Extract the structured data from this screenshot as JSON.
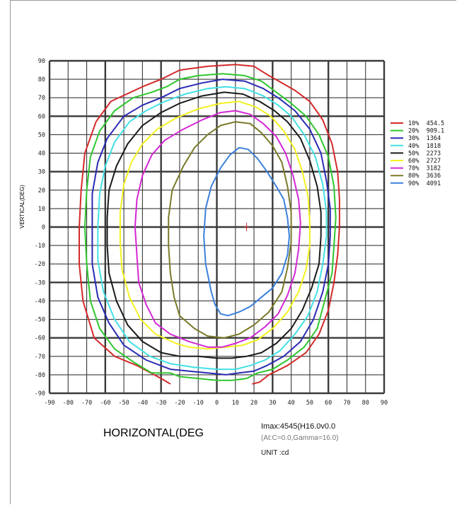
{
  "chart_data": {
    "type": "line",
    "chart_kind": "isocandela contour plot",
    "xlabel": "HORIZONTAL(DEG",
    "ylabel": "VERTICAL(DEG)",
    "xlim": [
      -90,
      90
    ],
    "ylim": [
      -90,
      90
    ],
    "x_ticks": [
      "-90",
      "-80",
      "-70",
      "-60",
      "-50",
      "-40",
      "-30",
      "-20",
      "-10",
      "0",
      "10",
      "20",
      "30",
      "40",
      "50",
      "60",
      "70",
      "80",
      "90"
    ],
    "y_ticks": [
      "90",
      "80",
      "70",
      "60",
      "50",
      "40",
      "30",
      "20",
      "10",
      "0",
      "-10",
      "-20",
      "-30",
      "-40",
      "-50",
      "-60",
      "-70",
      "-80",
      "-90"
    ],
    "grid": true,
    "legend_position": "right",
    "center_mark": [
      16,
      0
    ],
    "series": [
      {
        "name": "10%  454.5",
        "color": "#d42a2a",
        "points": [
          [
            -25,
            -85
          ],
          [
            -30,
            -82
          ],
          [
            -43,
            -75
          ],
          [
            -55,
            -70
          ],
          [
            -66,
            -60
          ],
          [
            -72,
            -40
          ],
          [
            -74,
            -20
          ],
          [
            -74,
            0
          ],
          [
            -73,
            20
          ],
          [
            -71,
            40
          ],
          [
            -65,
            57
          ],
          [
            -57,
            68
          ],
          [
            -40,
            76
          ],
          [
            -30,
            80
          ],
          [
            -20,
            85
          ],
          [
            -5,
            87
          ],
          [
            10,
            88
          ],
          [
            20,
            87
          ],
          [
            28,
            82
          ],
          [
            35,
            78
          ],
          [
            42,
            74
          ],
          [
            50,
            68
          ],
          [
            57,
            58
          ],
          [
            62,
            45
          ],
          [
            65,
            30
          ],
          [
            66,
            15
          ],
          [
            66,
            0
          ],
          [
            65,
            -15
          ],
          [
            63,
            -30
          ],
          [
            60,
            -45
          ],
          [
            55,
            -58
          ],
          [
            48,
            -68
          ],
          [
            38,
            -75
          ],
          [
            28,
            -80
          ],
          [
            23,
            -84
          ],
          [
            19,
            -85
          ]
        ]
      },
      {
        "name": "20%  909.1",
        "color": "#2ec72e",
        "points": [
          [
            -35,
            -79
          ],
          [
            -45,
            -73
          ],
          [
            -55,
            -66
          ],
          [
            -63,
            -55
          ],
          [
            -68,
            -40
          ],
          [
            -70,
            -20
          ],
          [
            -71,
            0
          ],
          [
            -70,
            20
          ],
          [
            -68,
            38
          ],
          [
            -63,
            52
          ],
          [
            -55,
            63
          ],
          [
            -45,
            70
          ],
          [
            -35,
            73
          ],
          [
            -27,
            76
          ],
          [
            -20,
            80
          ],
          [
            -10,
            82
          ],
          [
            3,
            83
          ],
          [
            15,
            82
          ],
          [
            24,
            79
          ],
          [
            32,
            73
          ],
          [
            40,
            67
          ],
          [
            48,
            60
          ],
          [
            55,
            50
          ],
          [
            60,
            38
          ],
          [
            63,
            22
          ],
          [
            64,
            5
          ],
          [
            63,
            -10
          ],
          [
            62,
            -25
          ],
          [
            58,
            -40
          ],
          [
            54,
            -55
          ],
          [
            47,
            -65
          ],
          [
            38,
            -72
          ],
          [
            30,
            -77
          ],
          [
            22,
            -79
          ],
          [
            16,
            -82
          ],
          [
            8,
            -83
          ],
          [
            0,
            -83
          ],
          [
            -10,
            -82
          ],
          [
            -20,
            -81
          ],
          [
            -25,
            -79
          ],
          [
            -35,
            -79
          ]
        ]
      },
      {
        "name": "30%  1364",
        "color": "#2a2ab4",
        "points": [
          [
            -25,
            -77
          ],
          [
            -38,
            -72
          ],
          [
            -50,
            -64
          ],
          [
            -58,
            -52
          ],
          [
            -64,
            -38
          ],
          [
            -67,
            -20
          ],
          [
            -67,
            0
          ],
          [
            -67,
            18
          ],
          [
            -64,
            35
          ],
          [
            -59,
            48
          ],
          [
            -50,
            60
          ],
          [
            -40,
            66
          ],
          [
            -30,
            70
          ],
          [
            -20,
            75
          ],
          [
            -8,
            78
          ],
          [
            3,
            80
          ],
          [
            15,
            79
          ],
          [
            25,
            75
          ],
          [
            33,
            70
          ],
          [
            42,
            63
          ],
          [
            50,
            53
          ],
          [
            56,
            40
          ],
          [
            59,
            25
          ],
          [
            61,
            10
          ],
          [
            61,
            -5
          ],
          [
            60,
            -20
          ],
          [
            57,
            -35
          ],
          [
            52,
            -50
          ],
          [
            45,
            -62
          ],
          [
            36,
            -70
          ],
          [
            27,
            -75
          ],
          [
            20,
            -78
          ],
          [
            12,
            -79
          ],
          [
            5,
            -80
          ],
          [
            -5,
            -79
          ],
          [
            -15,
            -78
          ],
          [
            -25,
            -77
          ]
        ]
      },
      {
        "name": "40%  1818",
        "color": "#42e0e6",
        "points": [
          [
            -25,
            -74
          ],
          [
            -36,
            -70
          ],
          [
            -47,
            -62
          ],
          [
            -55,
            -50
          ],
          [
            -61,
            -35
          ],
          [
            -64,
            -18
          ],
          [
            -64,
            0
          ],
          [
            -63,
            18
          ],
          [
            -60,
            33
          ],
          [
            -55,
            46
          ],
          [
            -47,
            57
          ],
          [
            -38,
            63
          ],
          [
            -28,
            68
          ],
          [
            -17,
            72
          ],
          [
            -5,
            75
          ],
          [
            5,
            76
          ],
          [
            15,
            75
          ],
          [
            25,
            71
          ],
          [
            33,
            66
          ],
          [
            40,
            60
          ],
          [
            47,
            50
          ],
          [
            53,
            38
          ],
          [
            57,
            23
          ],
          [
            59,
            8
          ],
          [
            59,
            -5
          ],
          [
            57,
            -20
          ],
          [
            54,
            -35
          ],
          [
            49,
            -48
          ],
          [
            42,
            -58
          ],
          [
            34,
            -67
          ],
          [
            26,
            -72
          ],
          [
            18,
            -75
          ],
          [
            10,
            -77
          ],
          [
            0,
            -77
          ],
          [
            -12,
            -76
          ],
          [
            -25,
            -74
          ]
        ]
      },
      {
        "name": "50%  2273",
        "color": "#1a1a1a",
        "points": [
          [
            -30,
            -68
          ],
          [
            -40,
            -62
          ],
          [
            -48,
            -53
          ],
          [
            -54,
            -40
          ],
          [
            -58,
            -25
          ],
          [
            -59,
            -10
          ],
          [
            -59,
            5
          ],
          [
            -58,
            20
          ],
          [
            -54,
            33
          ],
          [
            -48,
            45
          ],
          [
            -40,
            55
          ],
          [
            -30,
            62
          ],
          [
            -20,
            67
          ],
          [
            -8,
            71
          ],
          [
            4,
            73
          ],
          [
            14,
            72
          ],
          [
            23,
            68
          ],
          [
            31,
            63
          ],
          [
            38,
            57
          ],
          [
            45,
            48
          ],
          [
            50,
            36
          ],
          [
            54,
            22
          ],
          [
            56,
            8
          ],
          [
            56,
            -5
          ],
          [
            55,
            -20
          ],
          [
            51,
            -33
          ],
          [
            46,
            -45
          ],
          [
            40,
            -55
          ],
          [
            32,
            -63
          ],
          [
            24,
            -68
          ],
          [
            16,
            -70
          ],
          [
            8,
            -71
          ],
          [
            0,
            -71
          ],
          [
            -10,
            -70
          ],
          [
            -20,
            -70
          ],
          [
            -30,
            -68
          ]
        ]
      },
      {
        "name": "60%  2727",
        "color": "#f2f21e",
        "points": [
          [
            -22,
            -63
          ],
          [
            -33,
            -58
          ],
          [
            -41,
            -50
          ],
          [
            -47,
            -38
          ],
          [
            -51,
            -23
          ],
          [
            -52,
            -8
          ],
          [
            -52,
            8
          ],
          [
            -50,
            23
          ],
          [
            -46,
            35
          ],
          [
            -40,
            45
          ],
          [
            -32,
            53
          ],
          [
            -22,
            59
          ],
          [
            -10,
            64
          ],
          [
            2,
            67
          ],
          [
            12,
            68
          ],
          [
            21,
            65
          ],
          [
            29,
            60
          ],
          [
            36,
            52
          ],
          [
            42,
            42
          ],
          [
            46,
            30
          ],
          [
            49,
            17
          ],
          [
            50,
            3
          ],
          [
            50,
            -10
          ],
          [
            48,
            -23
          ],
          [
            44,
            -35
          ],
          [
            38,
            -46
          ],
          [
            30,
            -55
          ],
          [
            22,
            -61
          ],
          [
            14,
            -64
          ],
          [
            5,
            -65
          ],
          [
            -5,
            -66
          ],
          [
            -15,
            -65
          ],
          [
            -22,
            -63
          ]
        ]
      },
      {
        "name": "70%  3182",
        "color": "#d427d4",
        "points": [
          [
            -25,
            -58
          ],
          [
            -33,
            -52
          ],
          [
            -38,
            -42
          ],
          [
            -42,
            -30
          ],
          [
            -43,
            -15
          ],
          [
            -44,
            0
          ],
          [
            -43,
            15
          ],
          [
            -40,
            28
          ],
          [
            -35,
            39
          ],
          [
            -28,
            47
          ],
          [
            -18,
            53
          ],
          [
            -8,
            58
          ],
          [
            2,
            62
          ],
          [
            10,
            63
          ],
          [
            18,
            61
          ],
          [
            25,
            56
          ],
          [
            32,
            49
          ],
          [
            37,
            40
          ],
          [
            41,
            28
          ],
          [
            44,
            15
          ],
          [
            45,
            2
          ],
          [
            44,
            -12
          ],
          [
            42,
            -25
          ],
          [
            38,
            -37
          ],
          [
            33,
            -47
          ],
          [
            26,
            -54
          ],
          [
            18,
            -60
          ],
          [
            10,
            -63
          ],
          [
            3,
            -65
          ],
          [
            -5,
            -65
          ],
          [
            -15,
            -62
          ],
          [
            -25,
            -58
          ]
        ]
      },
      {
        "name": "80%  3636",
        "color": "#7a7a2a",
        "points": [
          [
            -20,
            -48
          ],
          [
            -23,
            -38
          ],
          [
            -25,
            -25
          ],
          [
            -26,
            -10
          ],
          [
            -26,
            5
          ],
          [
            -24,
            20
          ],
          [
            -18,
            33
          ],
          [
            -12,
            43
          ],
          [
            -5,
            50
          ],
          [
            2,
            55
          ],
          [
            10,
            57
          ],
          [
            18,
            56
          ],
          [
            24,
            51
          ],
          [
            30,
            44
          ],
          [
            35,
            35
          ],
          [
            38,
            22
          ],
          [
            40,
            8
          ],
          [
            40,
            -8
          ],
          [
            38,
            -22
          ],
          [
            35,
            -35
          ],
          [
            28,
            -46
          ],
          [
            20,
            -53
          ],
          [
            12,
            -58
          ],
          [
            4,
            -60
          ],
          [
            -5,
            -59
          ],
          [
            -12,
            -55
          ],
          [
            -20,
            -48
          ]
        ]
      },
      {
        "name": "90%  4091",
        "color": "#3a80dc",
        "points": [
          [
            -3,
            -35
          ],
          [
            -6,
            -20
          ],
          [
            -7,
            -5
          ],
          [
            -6,
            10
          ],
          [
            -3,
            22
          ],
          [
            2,
            32
          ],
          [
            7,
            39
          ],
          [
            12,
            43
          ],
          [
            17,
            42
          ],
          [
            22,
            37
          ],
          [
            27,
            30
          ],
          [
            32,
            22
          ],
          [
            36,
            15
          ],
          [
            38,
            5
          ],
          [
            39,
            -5
          ],
          [
            38,
            -15
          ],
          [
            35,
            -25
          ],
          [
            30,
            -33
          ],
          [
            24,
            -38
          ],
          [
            18,
            -43
          ],
          [
            12,
            -46
          ],
          [
            6,
            -48
          ],
          [
            2,
            -47
          ],
          [
            -1,
            -42
          ],
          [
            -3,
            -35
          ]
        ]
      }
    ]
  },
  "info": {
    "imax": "Imax:4545(H16.0v0.0",
    "at": "(At:C=0.0,Gamma=16.0)",
    "unit": "UNIT :cd"
  }
}
